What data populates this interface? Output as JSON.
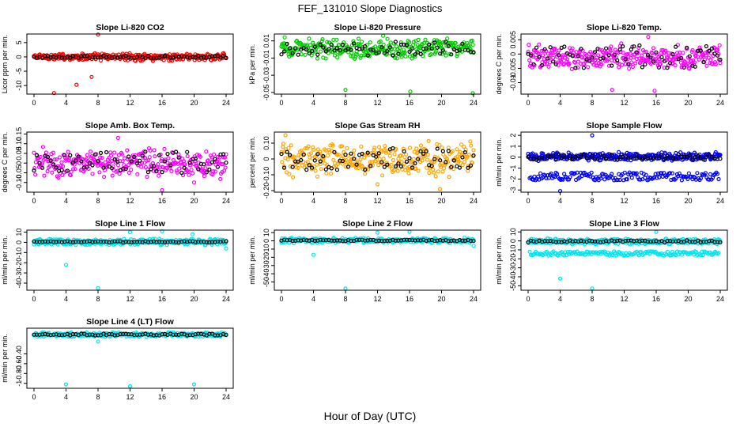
{
  "figure": {
    "title": "FEF_131010  Slope Diagnostics",
    "xlabel": "Hour of Day (UTC)"
  },
  "chart_data": [
    {
      "type": "scatter",
      "title": "Slope Li-820 CO2",
      "ylabel": "Licor ppm per min.",
      "color": "#ff0000",
      "xlim": [
        0,
        24
      ],
      "xticks": [
        0,
        4,
        8,
        12,
        16,
        20,
        24
      ],
      "ylim": [
        -13,
        8
      ],
      "yticks": [
        -10,
        -5,
        0,
        5
      ],
      "baseline": [
        -1.5,
        1.5
      ],
      "black_spread": 0.4,
      "extremes": [
        [
          8.0,
          7.8
        ],
        [
          2.5,
          -12.6
        ],
        [
          5.3,
          -9.7
        ],
        [
          7.2,
          -7.0
        ]
      ]
    },
    {
      "type": "scatter",
      "title": "Slope Li-820 Pressure",
      "ylabel": "kPa per min.",
      "color": "#00cc00",
      "xlim": [
        0,
        24
      ],
      "xticks": [
        0,
        4,
        8,
        12,
        16,
        20,
        24
      ],
      "ylim": [
        -0.052,
        0.018
      ],
      "yticks": [
        -0.05,
        -0.03,
        -0.01,
        0.01
      ],
      "baseline": [
        -0.012,
        0.014
      ],
      "black_spread": 0.008,
      "extremes": [
        [
          8.0,
          -0.047
        ],
        [
          16.1,
          -0.049
        ],
        [
          23.9,
          -0.051
        ],
        [
          12.7,
          0.016
        ],
        [
          0.4,
          0.014
        ]
      ]
    },
    {
      "type": "scatter",
      "title": "Slope Li-820 Temp.",
      "ylabel": "degrees C per min.",
      "color": "#ff00ff",
      "xlim": [
        0,
        24
      ],
      "xticks": [
        0,
        4,
        8,
        12,
        16,
        20,
        24
      ],
      "ylim": [
        -0.014,
        0.007
      ],
      "yticks": [
        -0.01,
        -0.005,
        0.0,
        0.005
      ],
      "baseline": [
        -0.006,
        0.004
      ],
      "black_spread": 0.004,
      "extremes": [
        [
          15.8,
          -0.0128
        ],
        [
          10.5,
          -0.0125
        ],
        [
          15.0,
          0.006
        ]
      ]
    },
    {
      "type": "scatter",
      "title": "Slope Amb. Box Temp.",
      "ylabel": "degrees C per min.",
      "color": "#ff00ff",
      "xlim": [
        0,
        24
      ],
      "xticks": [
        0,
        4,
        8,
        12,
        16,
        20,
        24
      ],
      "ylim": [
        -0.15,
        0.16
      ],
      "yticks": [
        -0.1,
        -0.05,
        0.0,
        0.05,
        0.1,
        0.15
      ],
      "baseline": [
        -0.09,
        0.09
      ],
      "black_spread": 0.06,
      "extremes": [
        [
          16.0,
          -0.14
        ],
        [
          20.0,
          -0.1
        ],
        [
          10.5,
          0.13
        ]
      ]
    },
    {
      "type": "scatter",
      "title": "Slope Gas Stream RH",
      "ylabel": "percent per min.",
      "color": "#ffa500",
      "xlim": [
        0,
        24
      ],
      "xticks": [
        0,
        4,
        8,
        12,
        16,
        20,
        24
      ],
      "ylim": [
        -0.21,
        0.17
      ],
      "yticks": [
        -0.2,
        -0.1,
        0.0,
        0.1
      ],
      "baseline": [
        -0.13,
        0.13
      ],
      "black_spread": 0.07,
      "extremes": [
        [
          12.0,
          -0.16
        ],
        [
          19.8,
          -0.19
        ],
        [
          0.5,
          0.15
        ]
      ]
    },
    {
      "type": "scatter",
      "title": "Slope Sample Flow",
      "ylabel": "ml/min per min.",
      "color": "#0000ff",
      "xlim": [
        0,
        24
      ],
      "xticks": [
        0,
        4,
        8,
        12,
        16,
        20,
        24
      ],
      "ylim": [
        -3.2,
        2.3
      ],
      "yticks": [
        -3,
        -2,
        -1,
        0,
        1,
        2
      ],
      "baseline": [
        -0.4,
        0.5
      ],
      "black_spread": 0.3,
      "lower_band": [
        -2.2,
        -1.3
      ],
      "extremes": [
        [
          8.0,
          2.0
        ],
        [
          4.0,
          -3.1
        ]
      ]
    },
    {
      "type": "scatter",
      "title": "Slope Line 1 Flow",
      "ylabel": "ml/min per min.",
      "color": "#00e5ee",
      "xlim": [
        0,
        24
      ],
      "xticks": [
        0,
        4,
        8,
        12,
        16,
        20,
        24
      ],
      "ylim": [
        -47,
        12
      ],
      "yticks": [
        -40,
        -30,
        -20,
        -10,
        0,
        10
      ],
      "baseline": [
        -3,
        4
      ],
      "black_spread": 0.6,
      "extremes": [
        [
          8.0,
          -45
        ],
        [
          4.0,
          -22
        ],
        [
          12.0,
          10
        ],
        [
          16.0,
          11
        ],
        [
          19.8,
          8
        ],
        [
          24.0,
          -6
        ]
      ]
    },
    {
      "type": "scatter",
      "title": "Slope Line 2 Flow",
      "ylabel": "ml/min per min.",
      "color": "#00e5ee",
      "xlim": [
        0,
        24
      ],
      "xticks": [
        0,
        4,
        8,
        12,
        16,
        20,
        24
      ],
      "ylim": [
        -60,
        13
      ],
      "yticks": [
        -50,
        -40,
        -30,
        -20,
        -10,
        0,
        10
      ],
      "baseline": [
        -3,
        4
      ],
      "black_spread": 0.8,
      "extremes": [
        [
          8.0,
          -58
        ],
        [
          4.0,
          -17
        ],
        [
          12.0,
          10
        ],
        [
          16.0,
          11
        ],
        [
          24.0,
          -6
        ]
      ]
    },
    {
      "type": "scatter",
      "title": "Slope Line 3 Flow",
      "ylabel": "ml/min per min.",
      "color": "#00e5ee",
      "xlim": [
        0,
        24
      ],
      "xticks": [
        0,
        4,
        8,
        12,
        16,
        20,
        24
      ],
      "ylim": [
        -55,
        12
      ],
      "yticks": [
        -50,
        -40,
        -30,
        -20,
        -10,
        0,
        10
      ],
      "baseline": [
        -4,
        3
      ],
      "black_spread": 1.2,
      "lower_band": [
        -17,
        -11
      ],
      "extremes": [
        [
          8.0,
          -53
        ],
        [
          4.0,
          -42
        ],
        [
          16.0,
          10
        ]
      ]
    },
    {
      "type": "scatter",
      "title": "Slope Line 4 (LT) Flow",
      "ylabel": "ml/min per min.",
      "color": "#00e5ee",
      "xlim": [
        0,
        24
      ],
      "xticks": [
        0,
        4,
        8,
        12,
        16,
        20,
        24
      ],
      "ylim": [
        -1.1,
        0.12
      ],
      "yticks": [
        -1.0,
        -0.8,
        -0.6,
        -0.4
      ],
      "baseline": [
        -0.06,
        0.04
      ],
      "black_spread": 0.02,
      "extremes": [
        [
          4.0,
          -1.02
        ],
        [
          12.0,
          -1.06
        ],
        [
          20.0,
          -1.02
        ],
        [
          8.0,
          -0.15
        ]
      ]
    }
  ]
}
